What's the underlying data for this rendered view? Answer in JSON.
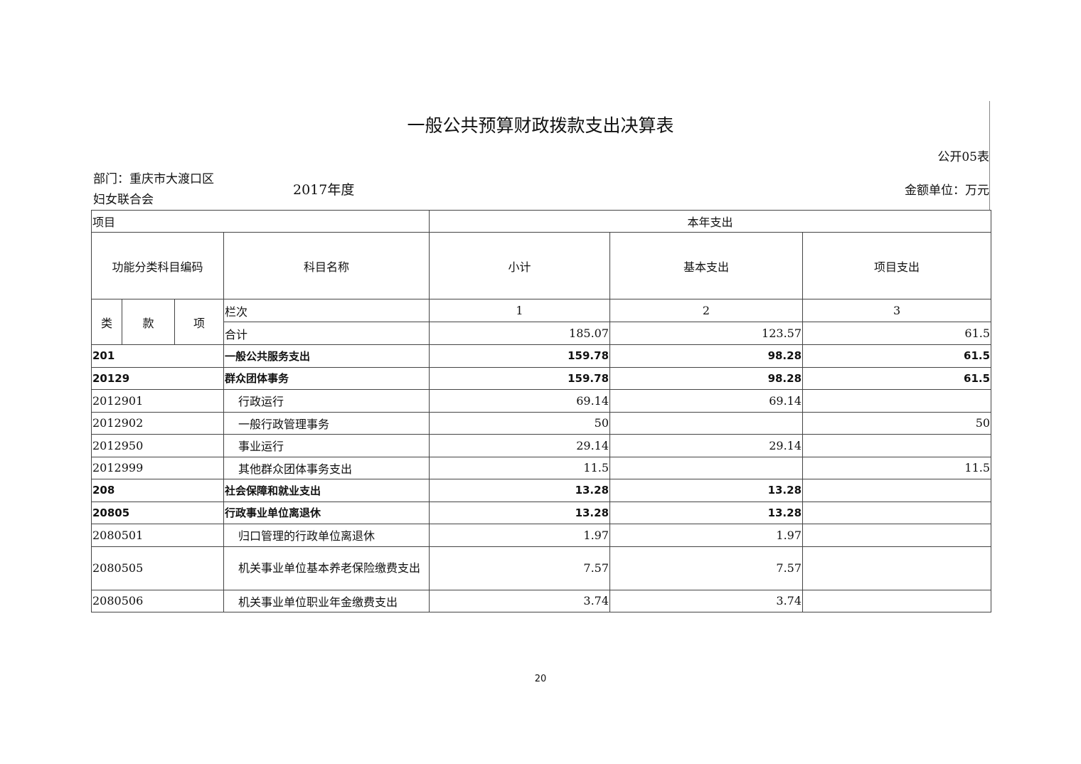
{
  "title": "一般公共预算财政拨款支出决算表",
  "table_no": "公开05表",
  "department": "部门：重庆市大渡口区妇女联合会",
  "year": "2017年度",
  "unit": "金额单位：万元",
  "header": {
    "item": "项目",
    "current_year": "本年支出",
    "code": "功能分类科目编码",
    "name": "科目名称",
    "subtotal": "小计",
    "basic": "基本支出",
    "project": "项目支出",
    "lei": "类",
    "kuan": "款",
    "xiang": "项",
    "column_no": "栏次",
    "col1": "1",
    "col2": "2",
    "col3": "3"
  },
  "total": {
    "label": "合计",
    "subtotal": "185.07",
    "basic": "123.57",
    "project": "61.5"
  },
  "rows": [
    {
      "code": "201",
      "name": "一般公共服务支出",
      "subtotal": "159.78",
      "basic": "98.28",
      "project": "61.5",
      "bold": true
    },
    {
      "code": "20129",
      "name": "群众团体事务",
      "subtotal": "159.78",
      "basic": "98.28",
      "project": "61.5",
      "bold": true
    },
    {
      "code": "2012901",
      "name": "行政运行",
      "subtotal": "69.14",
      "basic": "69.14",
      "project": ""
    },
    {
      "code": "2012902",
      "name": "一般行政管理事务",
      "subtotal": "50",
      "basic": "",
      "project": "50"
    },
    {
      "code": "2012950",
      "name": "事业运行",
      "subtotal": "29.14",
      "basic": "29.14",
      "project": ""
    },
    {
      "code": "2012999",
      "name": "其他群众团体事务支出",
      "subtotal": "11.5",
      "basic": "",
      "project": "11.5"
    },
    {
      "code": "208",
      "name": "社会保障和就业支出",
      "subtotal": "13.28",
      "basic": "13.28",
      "project": "",
      "bold": true
    },
    {
      "code": "20805",
      "name": "行政事业单位离退休",
      "subtotal": "13.28",
      "basic": "13.28",
      "project": "",
      "bold": true
    },
    {
      "code": "2080501",
      "name": "归口管理的行政单位离退休",
      "subtotal": "1.97",
      "basic": "1.97",
      "project": ""
    },
    {
      "code": "2080505",
      "name": "机关事业单位基本养老保险缴费支出",
      "subtotal": "7.57",
      "basic": "7.57",
      "project": ""
    },
    {
      "code": "2080506",
      "name": "机关事业单位职业年金缴费支出",
      "subtotal": "3.74",
      "basic": "3.74",
      "project": ""
    }
  ],
  "page_number": "20"
}
